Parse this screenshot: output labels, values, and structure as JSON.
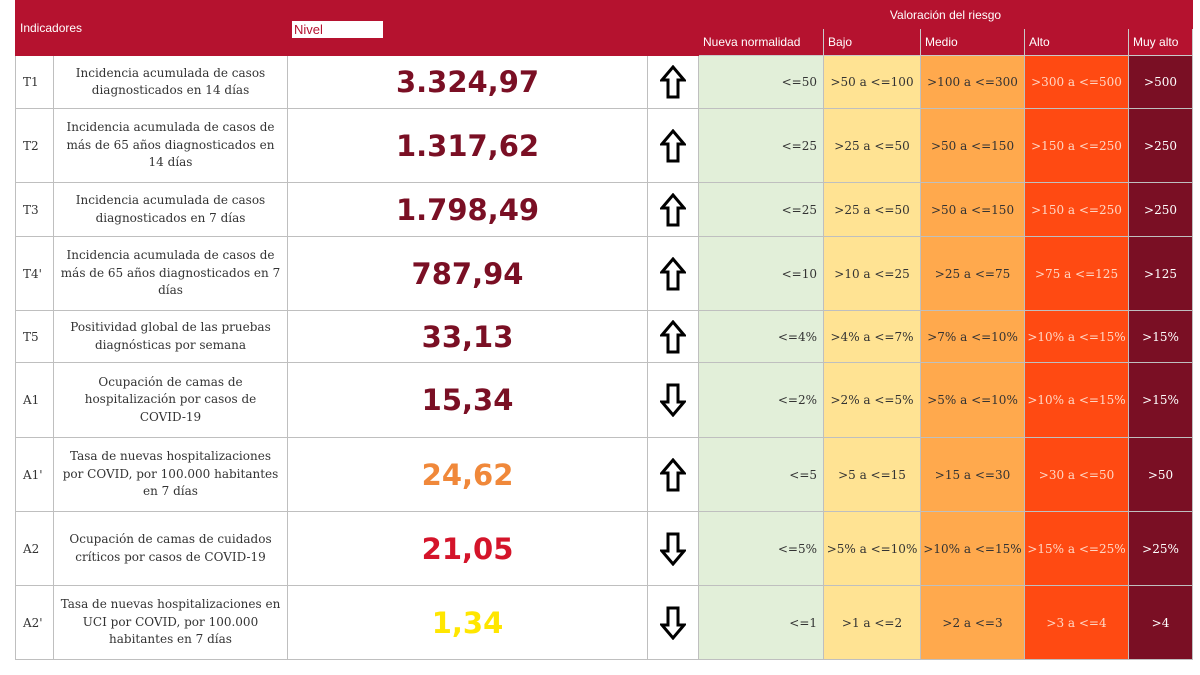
{
  "header": {
    "indicadores": "Indicadores",
    "nivel": "Nivel",
    "valoracion": "Valoración del riesgo",
    "categories": [
      "Nueva normalidad",
      "Bajo",
      "Medio",
      "Alto",
      "Muy alto"
    ]
  },
  "colors": {
    "header_bg": "#b5122f",
    "nueva_normalidad": "#e2efd9",
    "bajo": "#ffe393",
    "medio": "#ffa94d",
    "alto": "#ff4a12",
    "muy_alto": "#7a0f24"
  },
  "rows": [
    {
      "code": "T1",
      "desc": "Incidencia acumulada de casos diagnosticados en 14 días",
      "value": "3.324,97",
      "value_color": "#7a0f24",
      "trend": "up-arrow-icon",
      "nueva": "<=50",
      "bajo": ">50 a <=100",
      "medio": ">100 a <=300",
      "alto": ">300 a <=500",
      "muy": ">500"
    },
    {
      "code": "T2",
      "desc": "Incidencia acumulada de casos de más de 65 años diagnosticados en 14 días",
      "value": "1.317,62",
      "value_color": "#7a0f24",
      "trend": "up-arrow-icon",
      "nueva": "<=25",
      "bajo": ">25 a <=50",
      "medio": ">50 a <=150",
      "alto": ">150 a <=250",
      "muy": ">250"
    },
    {
      "code": "T3",
      "desc": "Incidencia acumulada de casos diagnosticados en 7 días",
      "value": "1.798,49",
      "value_color": "#7a0f24",
      "trend": "up-arrow-icon",
      "nueva": "<=25",
      "bajo": ">25 a <=50",
      "medio": ">50 a <=150",
      "alto": ">150 a <=250",
      "muy": ">250"
    },
    {
      "code": "T4'",
      "desc": "Incidencia acumulada de casos de más de 65 años diagnosticados en 7 días",
      "value": "787,94",
      "value_color": "#7a0f24",
      "trend": "up-arrow-icon",
      "nueva": "<=10",
      "bajo": ">10 a <=25",
      "medio": ">25 a <=75",
      "alto": ">75 a <=125",
      "muy": ">125"
    },
    {
      "code": "T5",
      "desc": "Positividad global de las pruebas diagnósticas por semana",
      "value": "33,13",
      "value_color": "#7a0f24",
      "trend": "up-arrow-icon",
      "nueva": "<=4%",
      "bajo": ">4% a <=7%",
      "medio": ">7% a <=10%",
      "alto": ">10% a <=15%",
      "muy": ">15%"
    },
    {
      "code": "A1",
      "desc": "Ocupación de camas de hospitalización por casos de COVID-19",
      "value": "15,34",
      "value_color": "#7a0f24",
      "trend": "down-arrow-icon",
      "nueva": "<=2%",
      "bajo": ">2% a <=5%",
      "medio": ">5% a <=10%",
      "alto": ">10% a <=15%",
      "muy": ">15%"
    },
    {
      "code": "A1'",
      "desc": "Tasa de nuevas hospitalizaciones por COVID, por 100.000 habitantes en 7 días",
      "value": "24,62",
      "value_color": "#f0883a",
      "trend": "up-arrow-icon",
      "nueva": "<=5",
      "bajo": ">5 a <=15",
      "medio": ">15 a <=30",
      "alto": ">30 a <=50",
      "muy": ">50"
    },
    {
      "code": "A2",
      "desc": "Ocupación de camas de cuidados críticos por casos de COVID-19",
      "value": "21,05",
      "value_color": "#d4142a",
      "trend": "down-arrow-icon",
      "nueva": "<=5%",
      "bajo": ">5% a <=10%",
      "medio": ">10% a <=15%",
      "alto": ">15% a <=25%",
      "muy": ">25%"
    },
    {
      "code": "A2'",
      "desc": "Tasa de nuevas hospitalizaciones en UCI por COVID, por 100.000 habitantes en 7 días",
      "value": "1,34",
      "value_color": "#ffe600",
      "trend": "down-arrow-icon",
      "nueva": "<=1",
      "bajo": ">1 a <=2",
      "medio": ">2 a <=3",
      "alto": ">3 a <=4",
      "muy": ">4"
    }
  ]
}
